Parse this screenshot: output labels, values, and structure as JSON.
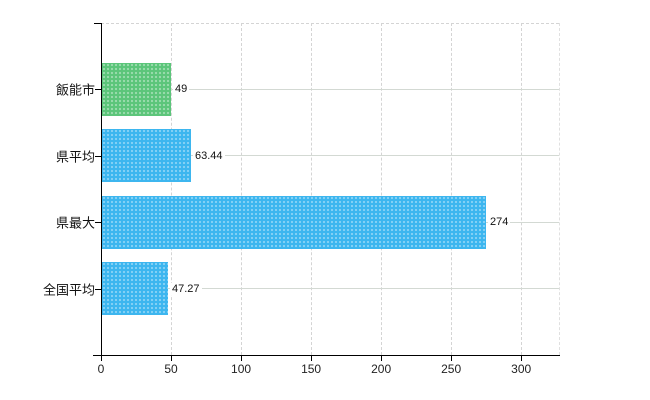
{
  "chart_data": {
    "type": "bar",
    "orientation": "horizontal",
    "title": "",
    "xlabel": "",
    "ylabel": "",
    "categories": [
      "飯能市",
      "県平均",
      "県最大",
      "全国平均"
    ],
    "values": [
      49,
      63.44,
      274,
      47.27
    ],
    "value_labels": [
      "49",
      "63.44",
      "274",
      "47.27"
    ],
    "bar_colors": [
      "#5cc57a",
      "#3cb6ef",
      "#3cb6ef",
      "#3cb6ef"
    ],
    "xticks": [
      0,
      50,
      100,
      150,
      200,
      250,
      300
    ],
    "xtick_labels": [
      "0",
      "50",
      "100",
      "150",
      "200",
      "250",
      "300"
    ],
    "xlim": [
      0,
      327
    ],
    "grid": true,
    "legend_position": "none",
    "colors": {
      "axis": "#000000",
      "grid_dashed": "#d4d4d4",
      "grid_solid": "#d3d9d3",
      "bar_dot_overlay": "rgba(255,255,255,0.38)",
      "text": "#111111",
      "background": "#ffffff"
    }
  }
}
